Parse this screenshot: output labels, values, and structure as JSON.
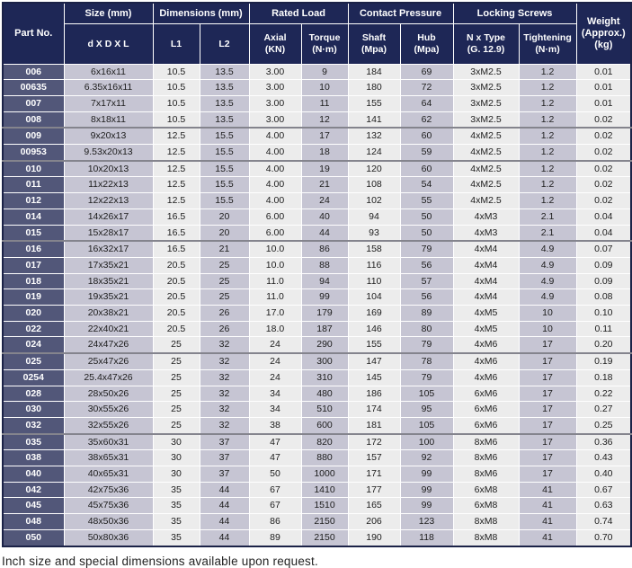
{
  "table": {
    "header": {
      "part_no": "Part No.",
      "size_group": "Size (mm)",
      "size_sub": "d X D X L",
      "dim_group": "Dimensions (mm)",
      "dim_sub": [
        "L1",
        "L2"
      ],
      "load_group": "Rated Load",
      "load_sub": [
        [
          "Axial",
          "(KN)"
        ],
        [
          "Torque",
          "(N·m)"
        ]
      ],
      "pressure_group": "Contact Pressure",
      "pressure_sub": [
        [
          "Shaft",
          "(Mpa)"
        ],
        [
          "Hub",
          "(Mpa)"
        ]
      ],
      "screws_group": "Locking Screws",
      "screws_sub": [
        [
          "N x Type",
          "(G. 12.9)"
        ],
        [
          "Tightening",
          "(N·m)"
        ]
      ],
      "weight": [
        "Weight",
        "(Approx.)",
        "(kg)"
      ]
    },
    "rows": [
      [
        "006",
        "6x16x11",
        "10.5",
        "13.5",
        "3.00",
        "9",
        "184",
        "69",
        "3xM2.5",
        "1.2",
        "0.01"
      ],
      [
        "00635",
        "6.35x16x11",
        "10.5",
        "13.5",
        "3.00",
        "10",
        "180",
        "72",
        "3xM2.5",
        "1.2",
        "0.01"
      ],
      [
        "007",
        "7x17x11",
        "10.5",
        "13.5",
        "3.00",
        "11",
        "155",
        "64",
        "3xM2.5",
        "1.2",
        "0.01"
      ],
      [
        "008",
        "8x18x11",
        "10.5",
        "13.5",
        "3.00",
        "12",
        "141",
        "62",
        "3xM2.5",
        "1.2",
        "0.02"
      ],
      [
        "009",
        "9x20x13",
        "12.5",
        "15.5",
        "4.00",
        "17",
        "132",
        "60",
        "4xM2.5",
        "1.2",
        "0.02"
      ],
      [
        "00953",
        "9.53x20x13",
        "12.5",
        "15.5",
        "4.00",
        "18",
        "124",
        "59",
        "4xM2.5",
        "1.2",
        "0.02"
      ],
      [
        "010",
        "10x20x13",
        "12.5",
        "15.5",
        "4.00",
        "19",
        "120",
        "60",
        "4xM2.5",
        "1.2",
        "0.02"
      ],
      [
        "011",
        "11x22x13",
        "12.5",
        "15.5",
        "4.00",
        "21",
        "108",
        "54",
        "4xM2.5",
        "1.2",
        "0.02"
      ],
      [
        "012",
        "12x22x13",
        "12.5",
        "15.5",
        "4.00",
        "24",
        "102",
        "55",
        "4xM2.5",
        "1.2",
        "0.02"
      ],
      [
        "014",
        "14x26x17",
        "16.5",
        "20",
        "6.00",
        "40",
        "94",
        "50",
        "4xM3",
        "2.1",
        "0.04"
      ],
      [
        "015",
        "15x28x17",
        "16.5",
        "20",
        "6.00",
        "44",
        "93",
        "50",
        "4xM3",
        "2.1",
        "0.04"
      ],
      [
        "016",
        "16x32x17",
        "16.5",
        "21",
        "10.0",
        "86",
        "158",
        "79",
        "4xM4",
        "4.9",
        "0.07"
      ],
      [
        "017",
        "17x35x21",
        "20.5",
        "25",
        "10.0",
        "88",
        "116",
        "56",
        "4xM4",
        "4.9",
        "0.09"
      ],
      [
        "018",
        "18x35x21",
        "20.5",
        "25",
        "11.0",
        "94",
        "110",
        "57",
        "4xM4",
        "4.9",
        "0.09"
      ],
      [
        "019",
        "19x35x21",
        "20.5",
        "25",
        "11.0",
        "99",
        "104",
        "56",
        "4xM4",
        "4.9",
        "0.08"
      ],
      [
        "020",
        "20x38x21",
        "20.5",
        "26",
        "17.0",
        "179",
        "169",
        "89",
        "4xM5",
        "10",
        "0.10"
      ],
      [
        "022",
        "22x40x21",
        "20.5",
        "26",
        "18.0",
        "187",
        "146",
        "80",
        "4xM5",
        "10",
        "0.11"
      ],
      [
        "024",
        "24x47x26",
        "25",
        "32",
        "24",
        "290",
        "155",
        "79",
        "4xM6",
        "17",
        "0.20"
      ],
      [
        "025",
        "25x47x26",
        "25",
        "32",
        "24",
        "300",
        "147",
        "78",
        "4xM6",
        "17",
        "0.19"
      ],
      [
        "0254",
        "25.4x47x26",
        "25",
        "32",
        "24",
        "310",
        "145",
        "79",
        "4xM6",
        "17",
        "0.18"
      ],
      [
        "028",
        "28x50x26",
        "25",
        "32",
        "34",
        "480",
        "186",
        "105",
        "6xM6",
        "17",
        "0.22"
      ],
      [
        "030",
        "30x55x26",
        "25",
        "32",
        "34",
        "510",
        "174",
        "95",
        "6xM6",
        "17",
        "0.27"
      ],
      [
        "032",
        "32x55x26",
        "25",
        "32",
        "38",
        "600",
        "181",
        "105",
        "6xM6",
        "17",
        "0.25"
      ],
      [
        "035",
        "35x60x31",
        "30",
        "37",
        "47",
        "820",
        "172",
        "100",
        "8xM6",
        "17",
        "0.36"
      ],
      [
        "038",
        "38x65x31",
        "30",
        "37",
        "47",
        "880",
        "157",
        "92",
        "8xM6",
        "17",
        "0.43"
      ],
      [
        "040",
        "40x65x31",
        "30",
        "37",
        "50",
        "1000",
        "171",
        "99",
        "8xM6",
        "17",
        "0.40"
      ],
      [
        "042",
        "42x75x36",
        "35",
        "44",
        "67",
        "1410",
        "177",
        "99",
        "6xM8",
        "41",
        "0.67"
      ],
      [
        "045",
        "45x75x36",
        "35",
        "44",
        "67",
        "1510",
        "165",
        "99",
        "6xM8",
        "41",
        "0.63"
      ],
      [
        "048",
        "48x50x36",
        "35",
        "44",
        "86",
        "2150",
        "206",
        "123",
        "8xM8",
        "41",
        "0.74"
      ],
      [
        "050",
        "50x80x36",
        "35",
        "44",
        "89",
        "2150",
        "190",
        "118",
        "8xM8",
        "41",
        "0.70"
      ]
    ],
    "thick_separator_after_row_indices": [
      3,
      5,
      10,
      17,
      22
    ]
  },
  "footer_note": "Inch size and special dimensions available upon request.",
  "colors": {
    "header_navy": "#1e2756",
    "part_no_cell": "#525779",
    "stripe_gray": "#c6c5d3",
    "stripe_light": "#ececec",
    "grid_line": "#ffffff",
    "group_separator": "#84848d"
  }
}
